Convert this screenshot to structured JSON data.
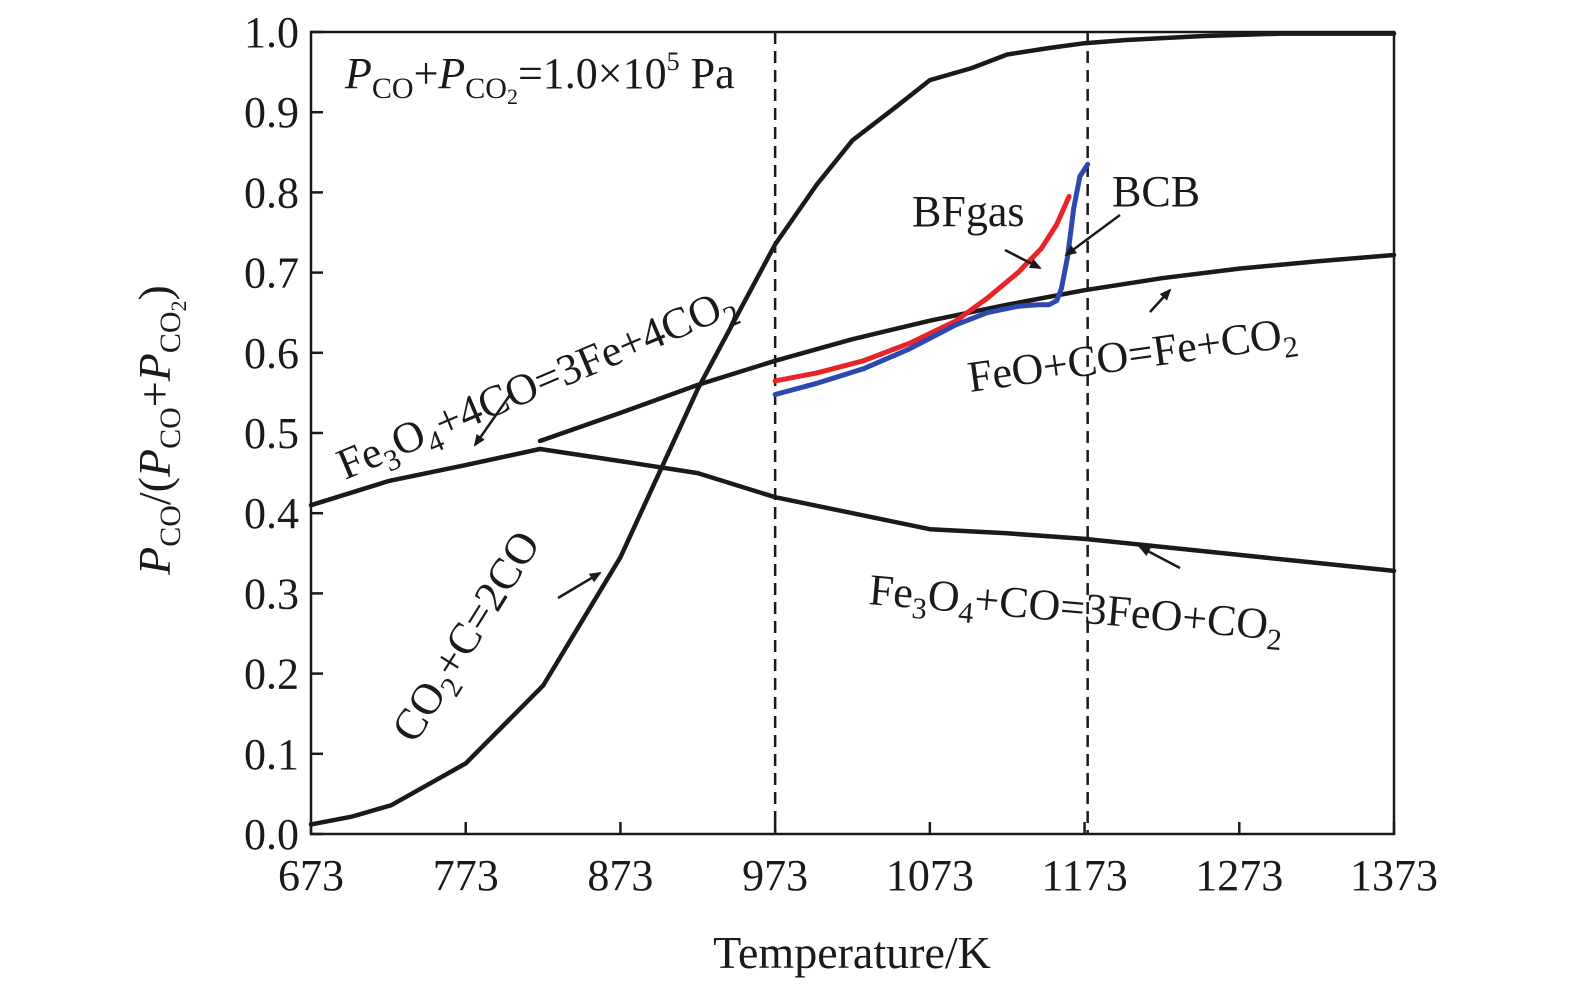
{
  "chart_data": {
    "type": "line",
    "xlabel": "Temperature/K",
    "ylabel": {
      "p": "P",
      "co": "CO",
      "slash": "/(",
      "p2": "P",
      "co2": "CO",
      "plus": "+",
      "p3": "P",
      "co3": "CO",
      "two": "2",
      "close": ")"
    },
    "xlim": [
      673,
      1373
    ],
    "ylim": [
      0.0,
      1.0
    ],
    "x_ticks": [
      "673",
      "773",
      "873",
      "973",
      "1073",
      "1173",
      "1273",
      "1373"
    ],
    "x_tick_values": [
      673,
      773,
      873,
      973,
      1073,
      1173,
      1273,
      1373
    ],
    "y_ticks": [
      "0.0",
      "0.1",
      "0.2",
      "0.3",
      "0.4",
      "0.5",
      "0.6",
      "0.7",
      "0.8",
      "0.9",
      "1.0"
    ],
    "y_tick_values": [
      0.0,
      0.1,
      0.2,
      0.3,
      0.4,
      0.5,
      0.6,
      0.7,
      0.8,
      0.9,
      1.0
    ],
    "grid": false,
    "vertical_dashed_lines": [
      973,
      1175
    ],
    "condition": {
      "p": "P",
      "co": "CO",
      "plus": "+",
      "p2": "P",
      "co2": "CO",
      "two": "2",
      "rest": "=1.0×10",
      "exp": "5",
      "unit": " Pa"
    },
    "series": [
      {
        "name": "CO2+C=2CO",
        "color": "#1a1a1a",
        "x": [
          673,
          700,
          725,
          773,
          823,
          873,
          923,
          973,
          1000,
          1023,
          1050,
          1073,
          1100,
          1123,
          1150,
          1173,
          1200,
          1250,
          1300,
          1373
        ],
        "y": [
          0.012,
          0.022,
          0.036,
          0.088,
          0.185,
          0.345,
          0.555,
          0.735,
          0.81,
          0.865,
          0.905,
          0.94,
          0.955,
          0.972,
          0.98,
          0.986,
          0.99,
          0.995,
          0.998,
          0.998
        ]
      },
      {
        "name": "FeO+CO=Fe+CO2",
        "color": "#1a1a1a",
        "x": [
          821,
          873,
          923,
          973,
          1023,
          1073,
          1123,
          1173,
          1223,
          1273,
          1323,
          1373
        ],
        "y": [
          0.49,
          0.525,
          0.56,
          0.59,
          0.617,
          0.64,
          0.66,
          0.678,
          0.693,
          0.705,
          0.714,
          0.722
        ]
      },
      {
        "name": "Fe3O4+4CO=3Fe+4CO2",
        "color": "#1a1a1a",
        "x": [
          673,
          723,
          773,
          821
        ],
        "y": [
          0.41,
          0.44,
          0.46,
          0.48
        ]
      },
      {
        "name": "Fe3O4+CO=3FeO+CO2",
        "color": "#1a1a1a",
        "x": [
          821,
          873,
          923,
          973,
          1023,
          1073,
          1123,
          1173,
          1223,
          1273,
          1323,
          1373
        ],
        "y": [
          0.48,
          0.465,
          0.45,
          0.42,
          0.4,
          0.38,
          0.375,
          0.368,
          0.358,
          0.348,
          0.338,
          0.328
        ]
      },
      {
        "name": "BFgas",
        "color": "#e8232a",
        "x": [
          973,
          1000,
          1030,
          1060,
          1090,
          1110,
          1130,
          1145,
          1155,
          1163
        ],
        "y": [
          0.565,
          0.575,
          0.59,
          0.612,
          0.64,
          0.668,
          0.7,
          0.73,
          0.76,
          0.795
        ]
      },
      {
        "name": "BCB",
        "color": "#2d49b0",
        "x": [
          973,
          1000,
          1030,
          1060,
          1090,
          1110,
          1130,
          1143,
          1150,
          1155,
          1158,
          1162,
          1166,
          1170,
          1175
        ],
        "y": [
          0.548,
          0.562,
          0.58,
          0.605,
          0.635,
          0.65,
          0.658,
          0.66,
          0.66,
          0.665,
          0.68,
          0.72,
          0.78,
          0.82,
          0.835
        ]
      }
    ],
    "annotations": {
      "co2c": {
        "co": "CO",
        "two": "2",
        "rest": "+C=2CO"
      },
      "fe3o4_4co": {
        "fe": "Fe",
        "three": "3",
        "o": "O",
        "four": "4",
        "rest": "+4CO=3Fe+4CO",
        "two": "2"
      },
      "feo_co": {
        "text": "FeO+CO=Fe+CO",
        "two": "2"
      },
      "fe3o4_co": {
        "fe": "Fe",
        "three": "3",
        "o": "O",
        "four": "4",
        "rest": "+CO=3FeO+CO",
        "two": "2"
      },
      "bfgas": "BFgas",
      "bcb": "BCB"
    }
  }
}
